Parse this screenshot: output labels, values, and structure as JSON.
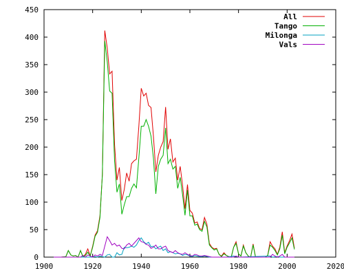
{
  "chart_data": {
    "type": "line",
    "title": "",
    "xlabel": "",
    "ylabel": "",
    "xlim": [
      1900,
      2020
    ],
    "ylim": [
      0,
      450
    ],
    "x_ticks": [
      1900,
      1920,
      1940,
      1960,
      1980,
      2000,
      2020
    ],
    "y_ticks": [
      0,
      50,
      100,
      150,
      200,
      250,
      300,
      350,
      400,
      450
    ],
    "grid": false,
    "legend_position": "top-right",
    "series": [
      {
        "name": "All",
        "color": "#e00000",
        "points": [
          [
            1904,
            0
          ],
          [
            1907,
            0
          ],
          [
            1909,
            1
          ],
          [
            1910,
            12
          ],
          [
            1911,
            4
          ],
          [
            1912,
            2
          ],
          [
            1913,
            3
          ],
          [
            1914,
            0
          ],
          [
            1915,
            12
          ],
          [
            1916,
            1
          ],
          [
            1917,
            5
          ],
          [
            1918,
            15
          ],
          [
            1919,
            2
          ],
          [
            1920,
            20
          ],
          [
            1921,
            40
          ],
          [
            1922,
            48
          ],
          [
            1923,
            75
          ],
          [
            1924,
            150
          ],
          [
            1925,
            412
          ],
          [
            1926,
            380
          ],
          [
            1927,
            333
          ],
          [
            1928,
            338
          ],
          [
            1929,
            205
          ],
          [
            1930,
            140
          ],
          [
            1931,
            163
          ],
          [
            1932,
            103
          ],
          [
            1933,
            123
          ],
          [
            1934,
            153
          ],
          [
            1935,
            138
          ],
          [
            1936,
            170
          ],
          [
            1937,
            175
          ],
          [
            1938,
            178
          ],
          [
            1939,
            238
          ],
          [
            1940,
            307
          ],
          [
            1941,
            293
          ],
          [
            1942,
            298
          ],
          [
            1943,
            276
          ],
          [
            1944,
            272
          ],
          [
            1945,
            220
          ],
          [
            1946,
            155
          ],
          [
            1947,
            185
          ],
          [
            1948,
            200
          ],
          [
            1949,
            210
          ],
          [
            1950,
            273
          ],
          [
            1951,
            196
          ],
          [
            1952,
            215
          ],
          [
            1953,
            173
          ],
          [
            1954,
            180
          ],
          [
            1955,
            140
          ],
          [
            1956,
            165
          ],
          [
            1957,
            130
          ],
          [
            1958,
            88
          ],
          [
            1959,
            132
          ],
          [
            1960,
            85
          ],
          [
            1961,
            80
          ],
          [
            1962,
            62
          ],
          [
            1963,
            64
          ],
          [
            1964,
            52
          ],
          [
            1965,
            50
          ],
          [
            1966,
            72
          ],
          [
            1967,
            60
          ],
          [
            1968,
            25
          ],
          [
            1969,
            18
          ],
          [
            1970,
            15
          ],
          [
            1971,
            16
          ],
          [
            1972,
            5
          ],
          [
            1973,
            2
          ],
          [
            1974,
            8
          ],
          [
            1975,
            3
          ],
          [
            1976,
            1
          ],
          [
            1977,
            0
          ],
          [
            1978,
            18
          ],
          [
            1979,
            28
          ],
          [
            1980,
            6
          ],
          [
            1981,
            2
          ],
          [
            1982,
            22
          ],
          [
            1983,
            8
          ],
          [
            1984,
            2
          ],
          [
            1985,
            0
          ],
          [
            1986,
            24
          ],
          [
            1987,
            0
          ],
          [
            1988,
            0
          ],
          [
            1989,
            0
          ],
          [
            1990,
            0
          ],
          [
            1991,
            0
          ],
          [
            1992,
            3
          ],
          [
            1993,
            28
          ],
          [
            1994,
            20
          ],
          [
            1995,
            15
          ],
          [
            1996,
            5
          ],
          [
            1997,
            18
          ],
          [
            1998,
            46
          ],
          [
            1999,
            8
          ],
          [
            2000,
            20
          ],
          [
            2001,
            30
          ],
          [
            2002,
            42
          ],
          [
            2003,
            16
          ]
        ]
      },
      {
        "name": "Tango",
        "color": "#00b000",
        "points": [
          [
            1904,
            0
          ],
          [
            1907,
            0
          ],
          [
            1909,
            1
          ],
          [
            1910,
            12
          ],
          [
            1911,
            4
          ],
          [
            1912,
            2
          ],
          [
            1913,
            3
          ],
          [
            1914,
            0
          ],
          [
            1915,
            12
          ],
          [
            1916,
            1
          ],
          [
            1917,
            3
          ],
          [
            1918,
            9
          ],
          [
            1919,
            2
          ],
          [
            1920,
            18
          ],
          [
            1921,
            38
          ],
          [
            1922,
            45
          ],
          [
            1923,
            72
          ],
          [
            1924,
            150
          ],
          [
            1925,
            393
          ],
          [
            1926,
            355
          ],
          [
            1927,
            302
          ],
          [
            1928,
            298
          ],
          [
            1929,
            175
          ],
          [
            1930,
            118
          ],
          [
            1931,
            133
          ],
          [
            1932,
            78
          ],
          [
            1933,
            95
          ],
          [
            1934,
            110
          ],
          [
            1935,
            110
          ],
          [
            1936,
            125
          ],
          [
            1937,
            133
          ],
          [
            1938,
            126
          ],
          [
            1939,
            180
          ],
          [
            1940,
            238
          ],
          [
            1941,
            238
          ],
          [
            1942,
            250
          ],
          [
            1943,
            238
          ],
          [
            1944,
            220
          ],
          [
            1945,
            180
          ],
          [
            1946,
            115
          ],
          [
            1947,
            165
          ],
          [
            1948,
            178
          ],
          [
            1949,
            185
          ],
          [
            1950,
            235
          ],
          [
            1951,
            170
          ],
          [
            1952,
            178
          ],
          [
            1953,
            160
          ],
          [
            1954,
            165
          ],
          [
            1955,
            125
          ],
          [
            1956,
            145
          ],
          [
            1957,
            113
          ],
          [
            1958,
            76
          ],
          [
            1959,
            122
          ],
          [
            1960,
            75
          ],
          [
            1961,
            75
          ],
          [
            1962,
            58
          ],
          [
            1963,
            60
          ],
          [
            1964,
            50
          ],
          [
            1965,
            47
          ],
          [
            1966,
            65
          ],
          [
            1967,
            55
          ],
          [
            1968,
            22
          ],
          [
            1969,
            17
          ],
          [
            1970,
            13
          ],
          [
            1971,
            15
          ],
          [
            1972,
            5
          ],
          [
            1973,
            1
          ],
          [
            1974,
            6
          ],
          [
            1975,
            3
          ],
          [
            1976,
            1
          ],
          [
            1977,
            0
          ],
          [
            1978,
            18
          ],
          [
            1979,
            25
          ],
          [
            1980,
            6
          ],
          [
            1981,
            2
          ],
          [
            1982,
            20
          ],
          [
            1983,
            8
          ],
          [
            1984,
            2
          ],
          [
            1985,
            0
          ],
          [
            1986,
            22
          ],
          [
            1987,
            0
          ],
          [
            1988,
            0
          ],
          [
            1989,
            0
          ],
          [
            1990,
            0
          ],
          [
            1991,
            0
          ],
          [
            1992,
            3
          ],
          [
            1993,
            22
          ],
          [
            1994,
            18
          ],
          [
            1995,
            12
          ],
          [
            1996,
            4
          ],
          [
            1997,
            15
          ],
          [
            1998,
            40
          ],
          [
            1999,
            6
          ],
          [
            2000,
            18
          ],
          [
            2001,
            26
          ],
          [
            2002,
            35
          ],
          [
            2003,
            14
          ]
        ]
      },
      {
        "name": "Milonga",
        "color": "#00a0c0",
        "points": [
          [
            1904,
            0
          ],
          [
            1920,
            0
          ],
          [
            1921,
            1
          ],
          [
            1922,
            0
          ],
          [
            1923,
            2
          ],
          [
            1924,
            1
          ],
          [
            1925,
            0
          ],
          [
            1926,
            4
          ],
          [
            1927,
            5
          ],
          [
            1928,
            0
          ],
          [
            1929,
            0
          ],
          [
            1930,
            8
          ],
          [
            1931,
            4
          ],
          [
            1932,
            5
          ],
          [
            1933,
            18
          ],
          [
            1934,
            17
          ],
          [
            1935,
            18
          ],
          [
            1936,
            20
          ],
          [
            1937,
            18
          ],
          [
            1938,
            22
          ],
          [
            1939,
            30
          ],
          [
            1940,
            35
          ],
          [
            1941,
            28
          ],
          [
            1942,
            24
          ],
          [
            1943,
            27
          ],
          [
            1944,
            19
          ],
          [
            1945,
            20
          ],
          [
            1946,
            15
          ],
          [
            1947,
            18
          ],
          [
            1948,
            20
          ],
          [
            1949,
            12
          ],
          [
            1950,
            15
          ],
          [
            1951,
            8
          ],
          [
            1952,
            10
          ],
          [
            1953,
            8
          ],
          [
            1954,
            6
          ],
          [
            1955,
            7
          ],
          [
            1956,
            6
          ],
          [
            1957,
            3
          ],
          [
            1958,
            5
          ],
          [
            1959,
            4
          ],
          [
            1960,
            2
          ],
          [
            1961,
            1
          ],
          [
            1962,
            3
          ],
          [
            1963,
            2
          ],
          [
            1964,
            1
          ],
          [
            1965,
            1
          ],
          [
            1966,
            2
          ],
          [
            1967,
            1
          ],
          [
            1968,
            0
          ],
          [
            1975,
            0
          ],
          [
            1978,
            2
          ],
          [
            1980,
            0
          ],
          [
            1993,
            2
          ],
          [
            1994,
            0
          ],
          [
            1996,
            1
          ],
          [
            1997,
            0
          ],
          [
            2003,
            0
          ]
        ]
      },
      {
        "name": "Vals",
        "color": "#a000c0",
        "points": [
          [
            1904,
            0
          ],
          [
            1915,
            0
          ],
          [
            1916,
            3
          ],
          [
            1917,
            0
          ],
          [
            1918,
            4
          ],
          [
            1919,
            2
          ],
          [
            1920,
            0
          ],
          [
            1921,
            4
          ],
          [
            1922,
            2
          ],
          [
            1923,
            5
          ],
          [
            1924,
            3
          ],
          [
            1925,
            20
          ],
          [
            1926,
            37
          ],
          [
            1927,
            30
          ],
          [
            1928,
            22
          ],
          [
            1929,
            25
          ],
          [
            1930,
            20
          ],
          [
            1931,
            22
          ],
          [
            1932,
            16
          ],
          [
            1933,
            15
          ],
          [
            1934,
            22
          ],
          [
            1935,
            25
          ],
          [
            1936,
            20
          ],
          [
            1937,
            25
          ],
          [
            1938,
            30
          ],
          [
            1939,
            35
          ],
          [
            1940,
            28
          ],
          [
            1941,
            27
          ],
          [
            1942,
            23
          ],
          [
            1943,
            22
          ],
          [
            1944,
            16
          ],
          [
            1945,
            18
          ],
          [
            1946,
            22
          ],
          [
            1947,
            15
          ],
          [
            1948,
            15
          ],
          [
            1949,
            18
          ],
          [
            1950,
            20
          ],
          [
            1951,
            12
          ],
          [
            1952,
            10
          ],
          [
            1953,
            8
          ],
          [
            1954,
            12
          ],
          [
            1955,
            8
          ],
          [
            1956,
            6
          ],
          [
            1957,
            5
          ],
          [
            1958,
            8
          ],
          [
            1959,
            5
          ],
          [
            1960,
            3
          ],
          [
            1961,
            2
          ],
          [
            1962,
            5
          ],
          [
            1963,
            4
          ],
          [
            1964,
            2
          ],
          [
            1965,
            2
          ],
          [
            1966,
            3
          ],
          [
            1967,
            2
          ],
          [
            1968,
            1
          ],
          [
            1969,
            0
          ],
          [
            1978,
            0
          ],
          [
            1979,
            2
          ],
          [
            1980,
            0
          ],
          [
            1993,
            0
          ],
          [
            1994,
            5
          ],
          [
            1995,
            2
          ],
          [
            1996,
            0
          ],
          [
            1997,
            2
          ],
          [
            1998,
            5
          ],
          [
            1999,
            0
          ],
          [
            2003,
            0
          ]
        ]
      }
    ]
  }
}
